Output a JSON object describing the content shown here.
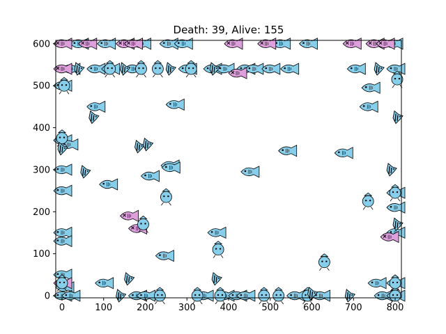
{
  "chart_data": {
    "type": "scatter",
    "title": "Death: 39, Alive: 155",
    "xlabel": "",
    "ylabel": "",
    "xlim": [
      -15,
      815
    ],
    "ylim": [
      -5,
      608
    ],
    "xticks": [
      0,
      100,
      200,
      300,
      400,
      500,
      600,
      700,
      800
    ],
    "yticks": [
      0,
      100,
      200,
      300,
      400,
      500,
      600
    ],
    "grid": false,
    "colors": {
      "alive": "#87CEEB",
      "dead": "#DDA0DD",
      "stroke": "#000000",
      "axis": "#000000"
    },
    "series": [
      {
        "kind": "alive-side-fish",
        "points": [
          [
            40,
            600
          ],
          [
            105,
            600
          ],
          [
            190,
            600
          ],
          [
            255,
            600
          ],
          [
            290,
            600
          ],
          [
            525,
            600
          ],
          [
            590,
            600
          ],
          [
            795,
            600
          ],
          [
            20,
            540
          ],
          [
            80,
            540
          ],
          [
            115,
            540
          ],
          [
            170,
            540
          ],
          [
            300,
            540
          ],
          [
            360,
            540
          ],
          [
            390,
            540
          ],
          [
            440,
            540
          ],
          [
            460,
            540
          ],
          [
            500,
            540
          ],
          [
            545,
            540
          ],
          [
            705,
            540
          ],
          [
            800,
            540
          ],
          [
            0,
            500
          ],
          [
            80,
            450
          ],
          [
            270,
            455
          ],
          [
            740,
            495
          ],
          [
            735,
            450
          ],
          [
            0,
            370
          ],
          [
            15,
            360
          ],
          [
            540,
            345
          ],
          [
            675,
            340
          ],
          [
            0,
            300
          ],
          [
            450,
            295
          ],
          [
            258,
            310
          ],
          [
            210,
            285
          ],
          [
            110,
            265
          ],
          [
            0,
            250
          ],
          [
            800,
            245
          ],
          [
            800,
            210
          ],
          [
            800,
            150
          ],
          [
            370,
            150
          ],
          [
            260,
            305
          ],
          [
            0,
            150
          ],
          [
            0,
            130
          ],
          [
            245,
            95
          ],
          [
            100,
            30
          ],
          [
            0,
            50
          ],
          [
            5,
            20
          ],
          [
            0,
            0
          ],
          [
            20,
            0
          ],
          [
            180,
            0
          ],
          [
            200,
            0
          ],
          [
            340,
            0
          ],
          [
            390,
            0
          ],
          [
            420,
            0
          ],
          [
            440,
            0
          ],
          [
            560,
            0
          ],
          [
            620,
            0
          ],
          [
            770,
            0
          ],
          [
            800,
            0
          ],
          [
            755,
            30
          ],
          [
            800,
            30
          ]
        ]
      },
      {
        "kind": "dead-side-fish",
        "points": [
          [
            0,
            600
          ],
          [
            60,
            600
          ],
          [
            150,
            600
          ],
          [
            170,
            600
          ],
          [
            410,
            600
          ],
          [
            490,
            600
          ],
          [
            695,
            600
          ],
          [
            750,
            600
          ],
          [
            775,
            600
          ],
          [
            0,
            540
          ],
          [
            420,
            530
          ],
          [
            160,
            190
          ],
          [
            180,
            160
          ],
          [
            0,
            30
          ],
          [
            785,
            140
          ]
        ]
      },
      {
        "kind": "alive-front-fish",
        "points": [
          [
            5,
            500
          ],
          [
            0,
            375
          ],
          [
            115,
            540
          ],
          [
            190,
            540
          ],
          [
            230,
            540
          ],
          [
            310,
            540
          ],
          [
            735,
            225
          ],
          [
            375,
            110
          ],
          [
            195,
            170
          ],
          [
            250,
            235
          ],
          [
            630,
            80
          ],
          [
            0,
            30
          ],
          [
            235,
            0
          ],
          [
            325,
            0
          ],
          [
            380,
            0
          ],
          [
            485,
            0
          ],
          [
            520,
            0
          ],
          [
            800,
            0
          ],
          [
            800,
            30
          ],
          [
            805,
            515
          ],
          [
            800,
            245
          ],
          [
            590,
            0
          ]
        ]
      },
      {
        "kind": "striped-fish",
        "points": [
          [
            75,
            425
          ],
          [
            185,
            355
          ],
          [
            205,
            360
          ],
          [
            55,
            295
          ],
          [
            0,
            350
          ],
          [
            150,
            540
          ],
          [
            40,
            540
          ],
          [
            260,
            540
          ],
          [
            365,
            540
          ],
          [
            805,
            425
          ],
          [
            140,
            0
          ],
          [
            160,
            40
          ],
          [
            370,
            40
          ],
          [
            760,
            540
          ],
          [
            690,
            0
          ],
          [
            600,
            5
          ],
          [
            790,
            300
          ],
          [
            805,
            170
          ]
        ]
      }
    ]
  }
}
